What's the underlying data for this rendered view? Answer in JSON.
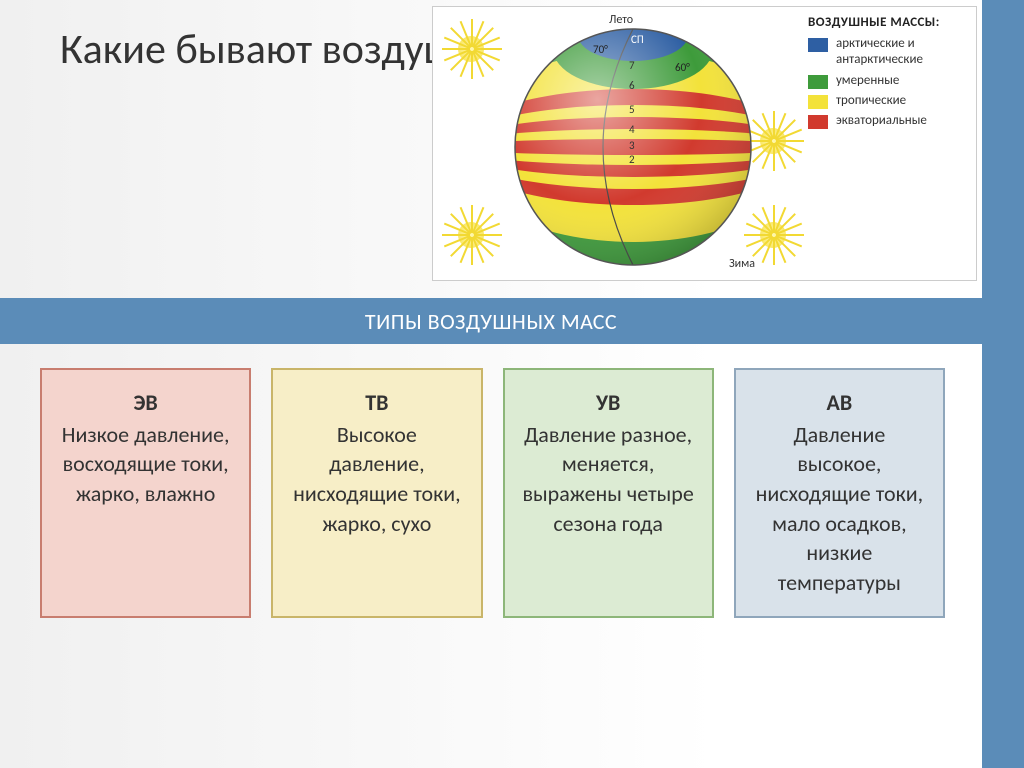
{
  "title": "Какие бывают воздушные массы?",
  "bar_title": "ТИПЫ ВОЗДУШНЫХ МАСС",
  "globe_diagram": {
    "type": "infographic",
    "background_color": "#ffffff",
    "border_color": "#cccccc",
    "season_labels": {
      "summer": "Лето",
      "winter": "Зима"
    },
    "north_pole_label": "СП",
    "degree_70": "70°",
    "degree_60": "60°",
    "band_numbers": [
      "7",
      "6",
      "5",
      "4",
      "3",
      "2"
    ],
    "sun_color": "#f7e04a",
    "sun_ray_color": "#f2d933",
    "bands": [
      {
        "name": "arctic_cap",
        "color": "#2e5fa3"
      },
      {
        "name": "temperate_n",
        "color": "#3e9b3b"
      },
      {
        "name": "tropical_n",
        "color": "#f3e23a"
      },
      {
        "name": "equatorial",
        "color": "#d13a2e"
      },
      {
        "name": "tropical_s",
        "color": "#f3e23a"
      },
      {
        "name": "temperate_s",
        "color": "#3e9b3b"
      }
    ]
  },
  "legend": {
    "title": "ВОЗДУШНЫЕ МАССЫ:",
    "items": [
      {
        "color": "#2e5fa3",
        "label": "арктические и антарктические"
      },
      {
        "color": "#3e9b3b",
        "label": "умеренные"
      },
      {
        "color": "#f3e23a",
        "label": "тропические"
      },
      {
        "color": "#d13a2e",
        "label": "экваториальные"
      }
    ]
  },
  "cards": [
    {
      "abbr": "ЭВ",
      "text": "Низкое давление, восходящие токи, жарко, влажно",
      "bg": "#f4d4cd",
      "border": "#c87d6f"
    },
    {
      "abbr": "ТВ",
      "text": "Высокое давление, нисходящие токи, жарко, сухо",
      "bg": "#f7eec7",
      "border": "#c9b569"
    },
    {
      "abbr": "УВ",
      "text": "Давление разное, меняется, выражены четыре сезона года",
      "bg": "#dcebd3",
      "border": "#8db679"
    },
    {
      "abbr": "АВ",
      "text": "Давление высокое, нисходящие токи, мало осадков, низкие температуры",
      "bg": "#d9e2ea",
      "border": "#8fa6bb"
    }
  ],
  "colors": {
    "accent_bar": "#5b8cb8",
    "page_bg_left": "#f0f0f0",
    "page_bg_right": "#ffffff",
    "text": "#333333"
  }
}
